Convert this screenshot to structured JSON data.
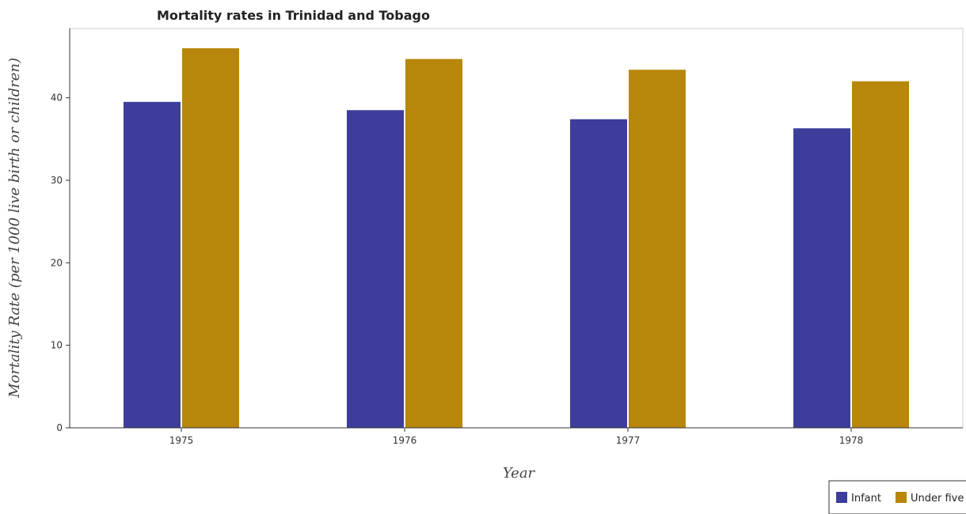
{
  "chart_data": {
    "type": "bar",
    "title": "Mortality rates in Trinidad and Tobago",
    "xlabel": "Year",
    "ylabel": "Mortality Rate (per 1000 live birth or children)",
    "categories": [
      "1975",
      "1976",
      "1977",
      "1978"
    ],
    "series": [
      {
        "name": "Infant",
        "color": "#3d3d9c",
        "values": [
          39.5,
          38.5,
          37.4,
          36.3
        ]
      },
      {
        "name": "Under five",
        "color": "#b8860b",
        "values": [
          46.0,
          44.7,
          43.4,
          42.0
        ]
      }
    ],
    "ylim": [
      0,
      48.4
    ],
    "yticks": [
      0,
      10,
      20,
      30,
      40
    ],
    "grid": false,
    "legend_position": "bottom-right"
  }
}
